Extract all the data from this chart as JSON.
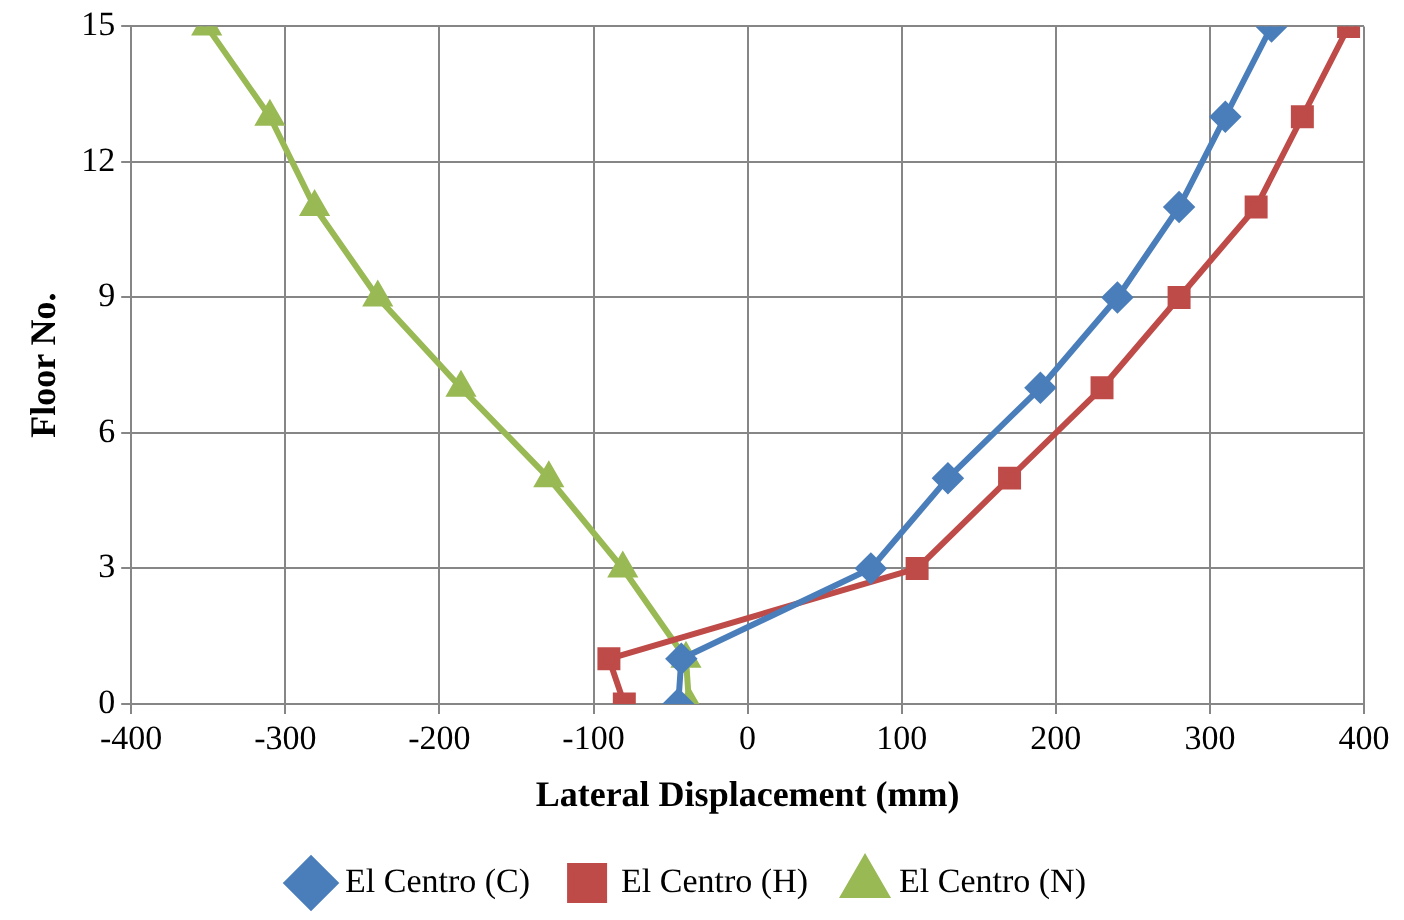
{
  "chart_data": {
    "type": "line",
    "xlabel": "Lateral Displacement (mm)",
    "ylabel": "Floor No.",
    "xlim": [
      -400,
      400
    ],
    "xticks": [
      -400,
      -300,
      -200,
      -100,
      0,
      100,
      200,
      300,
      400
    ],
    "ylim": [
      0,
      15
    ],
    "yticks": [
      0,
      3,
      6,
      9,
      12,
      15
    ],
    "grid": true,
    "legend": "bottom",
    "line_style": "solid",
    "series": [
      {
        "name": "El Centro (C)",
        "color": "#4a7ebb",
        "marker": "diamond",
        "x": [
          -45,
          -43,
          80,
          130,
          190,
          240,
          280,
          310,
          340
        ],
        "values": [
          0,
          1,
          3,
          5,
          7,
          9,
          11,
          13,
          15
        ]
      },
      {
        "name": "El Centro (H)",
        "color": "#be4b48",
        "marker": "square",
        "x": [
          -80,
          -90,
          110,
          170,
          230,
          280,
          330,
          360,
          390
        ],
        "values": [
          0,
          1,
          3,
          5,
          7,
          9,
          11,
          13,
          15
        ]
      },
      {
        "name": "El Centro (N)",
        "color": "#98b954",
        "marker": "triangle",
        "x": [
          -38,
          -40,
          -81,
          -129,
          -186,
          -240,
          -281,
          -310,
          -351
        ],
        "values": [
          0,
          1,
          3,
          5,
          7,
          9,
          11,
          13,
          15
        ]
      }
    ]
  }
}
